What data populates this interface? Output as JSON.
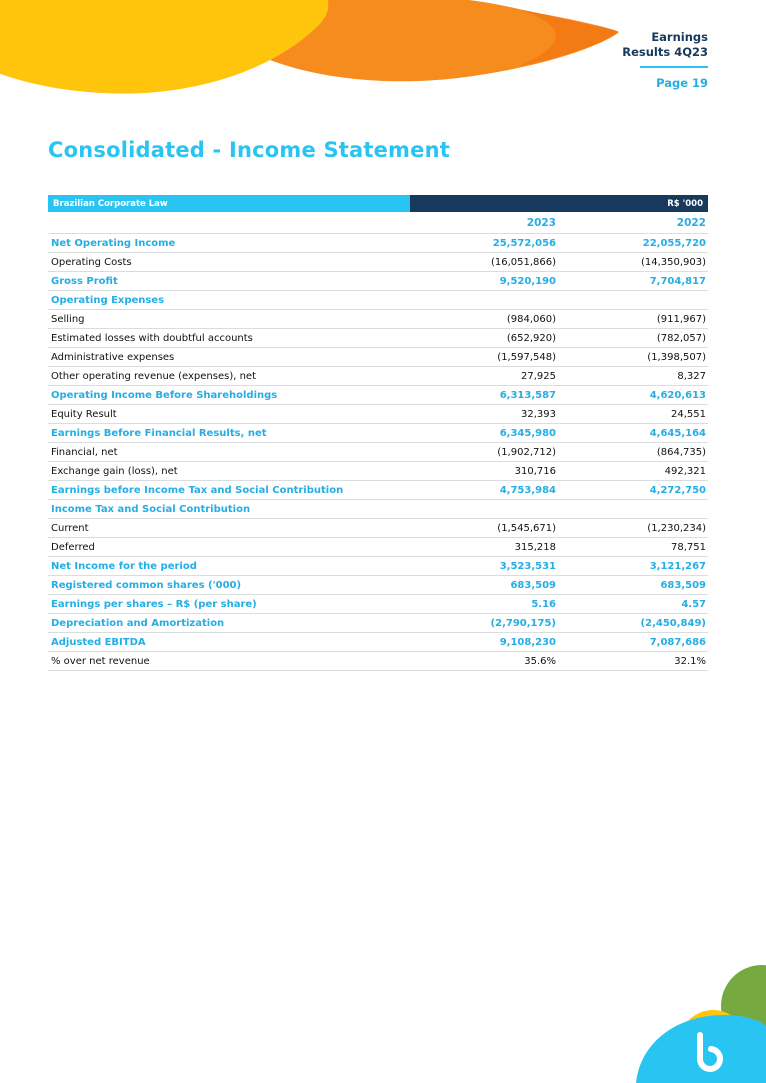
{
  "colors": {
    "accent": "#29C5F2",
    "accent-text": "#25AEE4",
    "navy": "#17395C",
    "yellow": "#FFC40C",
    "orange": "#F68B1E",
    "orange-deep": "#F2700C",
    "green": "#76A93F",
    "line": "#D9DDE0"
  },
  "header": {
    "title_line1": "Earnings",
    "title_line2": "Results 4Q23",
    "page": "Page 19"
  },
  "page_title": "Consolidated - Income Statement",
  "table": {
    "header_left": "Brazilian Corporate Law",
    "header_right": "R$ '000",
    "col_2023": "2023",
    "col_2022": "2022",
    "rows": [
      {
        "type": "bold",
        "label": "Net Operating Income",
        "y2023": "25,572,056",
        "y2022": "22,055,720"
      },
      {
        "type": "normal",
        "label": "Operating Costs",
        "y2023": "(16,051,866)",
        "y2022": "(14,350,903)"
      },
      {
        "type": "bold",
        "label": "Gross Profit",
        "y2023": "9,520,190",
        "y2022": "7,704,817"
      },
      {
        "type": "section",
        "label": "Operating Expenses",
        "y2023": "",
        "y2022": ""
      },
      {
        "type": "normal",
        "label": "Selling",
        "y2023": "(984,060)",
        "y2022": "(911,967)"
      },
      {
        "type": "normal",
        "label": "Estimated losses with doubtful accounts",
        "y2023": "(652,920)",
        "y2022": "(782,057)"
      },
      {
        "type": "normal",
        "label": "Administrative expenses",
        "y2023": "(1,597,548)",
        "y2022": "(1,398,507)"
      },
      {
        "type": "normal",
        "label": "Other operating revenue (expenses), net",
        "y2023": "27,925",
        "y2022": "8,327"
      },
      {
        "type": "bold",
        "label": "Operating Income Before Shareholdings",
        "y2023": "6,313,587",
        "y2022": "4,620,613"
      },
      {
        "type": "normal",
        "label": "Equity Result",
        "y2023": "32,393",
        "y2022": "24,551"
      },
      {
        "type": "bold",
        "label": "Earnings Before Financial Results, net",
        "y2023": "6,345,980",
        "y2022": "4,645,164"
      },
      {
        "type": "normal",
        "label": "Financial, net",
        "y2023": "(1,902,712)",
        "y2022": "(864,735)"
      },
      {
        "type": "normal",
        "label": "Exchange gain (loss), net",
        "y2023": "310,716",
        "y2022": "492,321"
      },
      {
        "type": "bold",
        "label": "Earnings before Income Tax and Social Contribution",
        "y2023": "4,753,984",
        "y2022": "4,272,750"
      },
      {
        "type": "section",
        "label": "Income Tax and Social Contribution",
        "y2023": "",
        "y2022": ""
      },
      {
        "type": "normal",
        "label": "Current",
        "y2023": "(1,545,671)",
        "y2022": "(1,230,234)"
      },
      {
        "type": "normal",
        "label": "Deferred",
        "y2023": "315,218",
        "y2022": "78,751"
      },
      {
        "type": "bold",
        "label": "Net Income for the period",
        "y2023": "3,523,531",
        "y2022": "3,121,267"
      },
      {
        "type": "bold",
        "label": "Registered common shares ('000)",
        "y2023": "683,509",
        "y2022": "683,509"
      },
      {
        "type": "bold",
        "label": "Earnings per shares – R$ (per share)",
        "y2023": "5.16",
        "y2022": "4.57"
      },
      {
        "type": "bold",
        "label": "Depreciation and Amortization",
        "y2023": "(2,790,175)",
        "y2022": "(2,450,849)"
      },
      {
        "type": "bold",
        "label": "Adjusted EBITDA",
        "y2023": "9,108,230",
        "y2022": "7,087,686"
      },
      {
        "type": "normal",
        "label": "% over net revenue",
        "y2023": "35.6%",
        "y2022": "32.1%"
      }
    ]
  }
}
